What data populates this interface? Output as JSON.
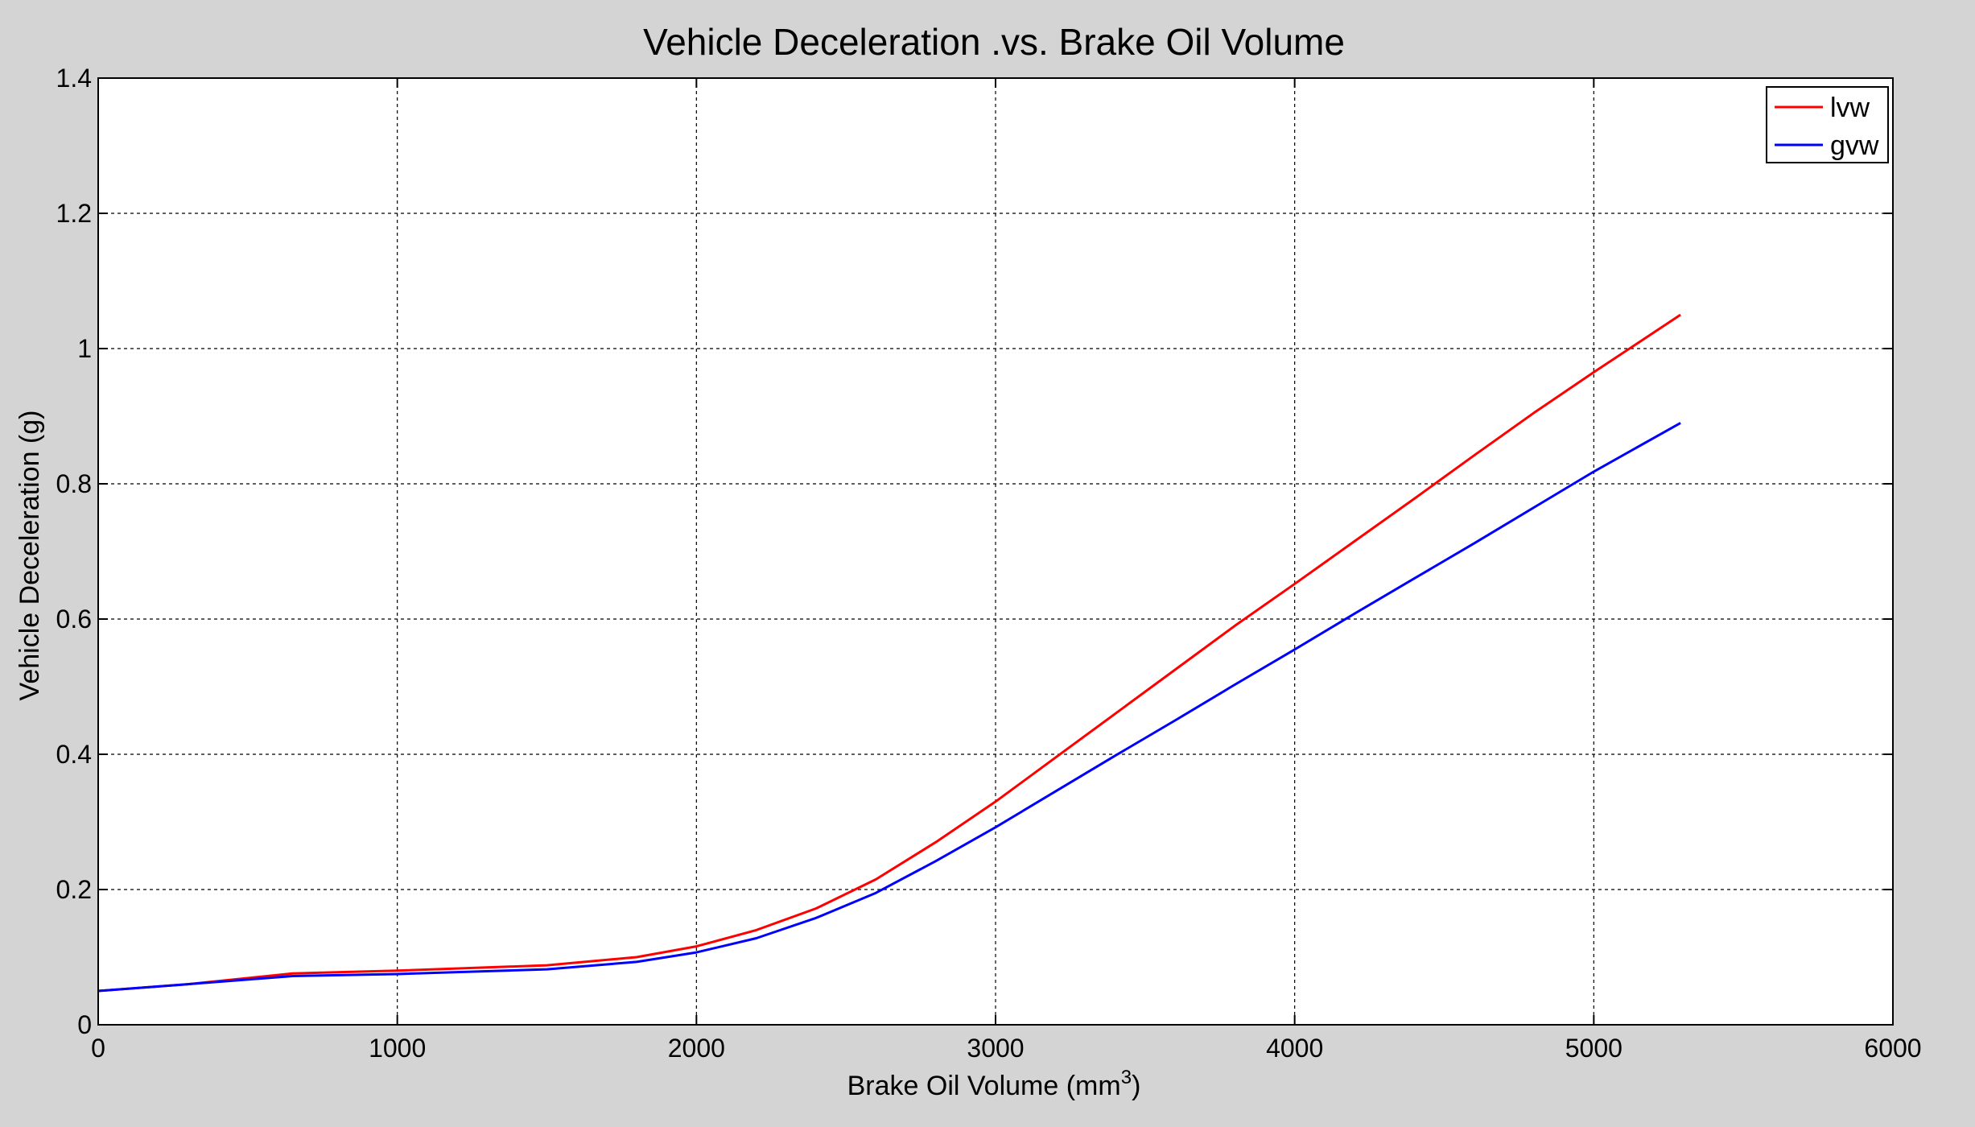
{
  "chart_data": {
    "type": "line",
    "title": "Vehicle Deceleration .vs. Brake Oil Volume",
    "xlabel": "Brake Oil Volume (mm",
    "xlabel_superscript": "3",
    "xlabel_suffix": ")",
    "ylabel": "Vehicle Deceleration (g)",
    "xlim": [
      0,
      6000
    ],
    "ylim": [
      0,
      1.4
    ],
    "x_ticks": [
      0,
      1000,
      2000,
      3000,
      4000,
      5000,
      6000
    ],
    "x_tick_labels": [
      "0",
      "1000",
      "2000",
      "3000",
      "4000",
      "5000",
      "6000"
    ],
    "y_ticks": [
      0,
      0.2,
      0.4,
      0.6,
      0.8,
      1.0,
      1.2,
      1.4
    ],
    "y_tick_labels": [
      "0",
      "0.2",
      "0.4",
      "0.6",
      "0.8",
      "1",
      "1.2",
      "1.4"
    ],
    "grid": true,
    "legend_position": "top-right",
    "series": [
      {
        "name": "lvw",
        "color": "#ff0000",
        "x": [
          0,
          300,
          650,
          1000,
          1500,
          1800,
          2000,
          2200,
          2400,
          2600,
          2800,
          3000,
          3200,
          3400,
          3600,
          3800,
          4000,
          4200,
          4400,
          4600,
          4800,
          5000,
          5290
        ],
        "y": [
          0.05,
          0.06,
          0.076,
          0.08,
          0.088,
          0.1,
          0.116,
          0.14,
          0.172,
          0.215,
          0.27,
          0.33,
          0.395,
          0.46,
          0.525,
          0.59,
          0.652,
          0.715,
          0.778,
          0.842,
          0.905,
          0.965,
          1.05
        ]
      },
      {
        "name": "gvw",
        "color": "#0000ff",
        "x": [
          0,
          300,
          650,
          1000,
          1500,
          1800,
          2000,
          2200,
          2400,
          2600,
          2800,
          3000,
          3200,
          3400,
          3600,
          3800,
          4000,
          4200,
          4400,
          4600,
          4800,
          5000,
          5290
        ],
        "y": [
          0.05,
          0.06,
          0.072,
          0.075,
          0.082,
          0.093,
          0.107,
          0.128,
          0.158,
          0.195,
          0.242,
          0.292,
          0.345,
          0.398,
          0.45,
          0.503,
          0.555,
          0.608,
          0.66,
          0.712,
          0.765,
          0.818,
          0.89
        ]
      }
    ]
  }
}
